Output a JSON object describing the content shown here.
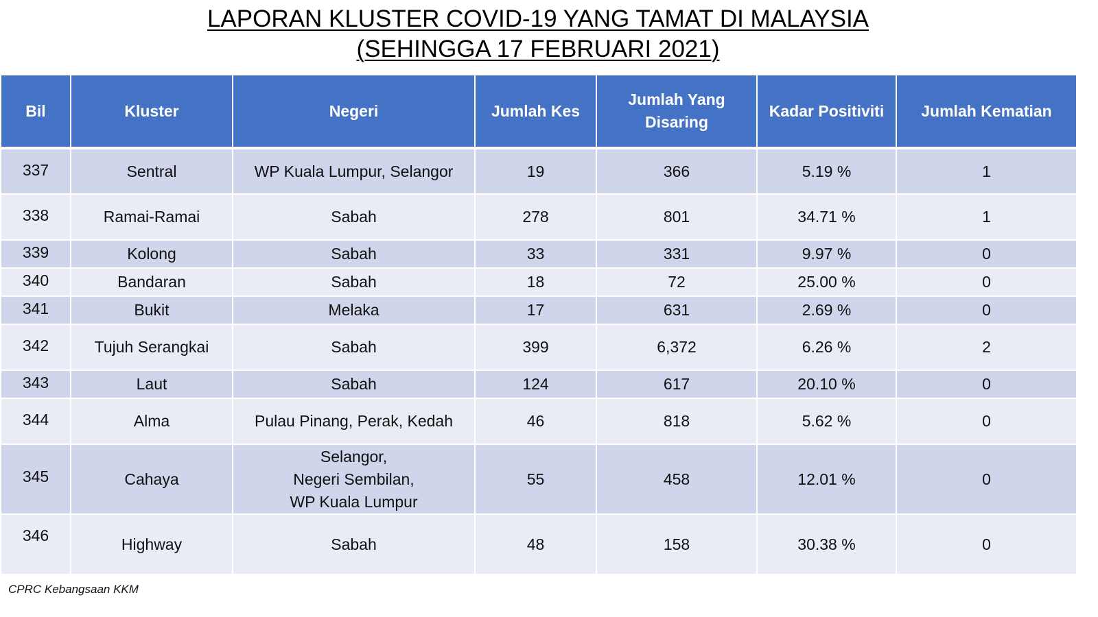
{
  "title": {
    "line1": "LAPORAN KLUSTER COVID-19 YANG TAMAT DI MALAYSIA",
    "line2": "(SEHINGGA 17 FEBRUARI 2021)"
  },
  "table": {
    "headers": {
      "bil": "Bil",
      "kluster": "Kluster",
      "negeri": "Negeri",
      "jumlah_kes": "Jumlah Kes",
      "jumlah_disaring_1": "Jumlah Yang",
      "jumlah_disaring_2": "Disaring",
      "kadar_positiviti": "Kadar Positiviti",
      "jumlah_kematian": "Jumlah Kematian"
    },
    "rows": [
      {
        "bil": "337",
        "kluster": "Sentral",
        "negeri": [
          "WP Kuala Lumpur, Selangor"
        ],
        "kes": "19",
        "disaring": "366",
        "positiviti": "5.19 %",
        "kematian": "1"
      },
      {
        "bil": "338",
        "kluster": "Ramai-Ramai",
        "negeri": [
          "Sabah"
        ],
        "kes": "278",
        "disaring": "801",
        "positiviti": "34.71 %",
        "kematian": "1"
      },
      {
        "bil": "339",
        "kluster": "Kolong",
        "negeri": [
          "Sabah"
        ],
        "kes": "33",
        "disaring": "331",
        "positiviti": "9.97 %",
        "kematian": "0"
      },
      {
        "bil": "340",
        "kluster": "Bandaran",
        "negeri": [
          "Sabah"
        ],
        "kes": "18",
        "disaring": "72",
        "positiviti": "25.00 %",
        "kematian": "0"
      },
      {
        "bil": "341",
        "kluster": "Bukit",
        "negeri": [
          "Melaka"
        ],
        "kes": "17",
        "disaring": "631",
        "positiviti": "2.69 %",
        "kematian": "0"
      },
      {
        "bil": "342",
        "kluster": "Tujuh Serangkai",
        "negeri": [
          "Sabah"
        ],
        "kes": "399",
        "disaring": "6,372",
        "positiviti": "6.26 %",
        "kematian": "2"
      },
      {
        "bil": "343",
        "kluster": "Laut",
        "negeri": [
          "Sabah"
        ],
        "kes": "124",
        "disaring": "617",
        "positiviti": "20.10 %",
        "kematian": "0"
      },
      {
        "bil": "344",
        "kluster": "Alma",
        "negeri": [
          "Pulau Pinang, Perak, Kedah"
        ],
        "kes": "46",
        "disaring": "818",
        "positiviti": "5.62  %",
        "kematian": "0"
      },
      {
        "bil": "345",
        "kluster": "Cahaya",
        "negeri": [
          "Selangor,",
          "Negeri Sembilan,",
          "WP Kuala Lumpur"
        ],
        "kes": "55",
        "disaring": "458",
        "positiviti": "12.01 %",
        "kematian": "0"
      },
      {
        "bil": "346",
        "kluster": "Highway",
        "negeri": [
          "Sabah"
        ],
        "kes": "48",
        "disaring": "158",
        "positiviti": "30.38 %",
        "kematian": "0"
      }
    ]
  },
  "footer": "CPRC Kebangsaan KKM",
  "colors": {
    "header_bg": "#4472c4",
    "row_dark": "#cfd5ea",
    "row_light": "#e9ebf5"
  }
}
